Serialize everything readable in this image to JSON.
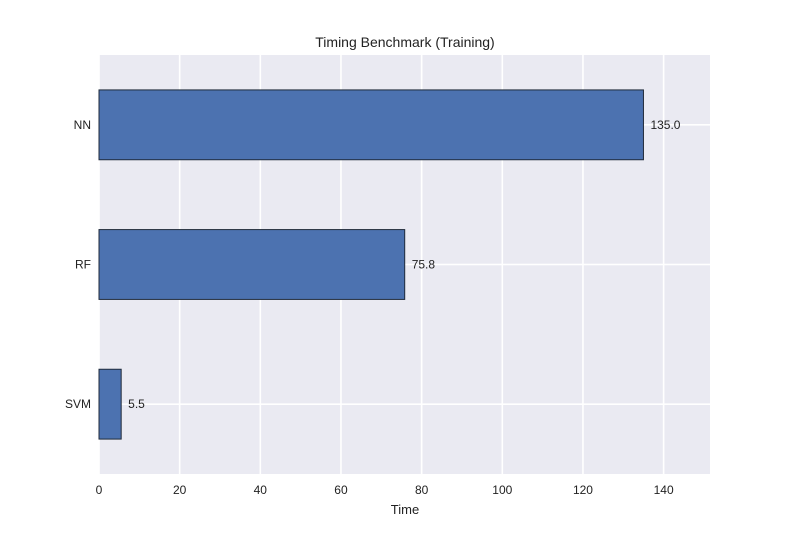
{
  "chart_data": {
    "type": "bar",
    "orientation": "horizontal",
    "title": "Timing Benchmark (Training)",
    "xlabel": "Time",
    "ylabel": "",
    "categories": [
      "SVM",
      "RF",
      "NN"
    ],
    "values": [
      5.5,
      75.8,
      135.0
    ],
    "data_labels": [
      "5.5",
      "75.8",
      "135.0"
    ],
    "xlim": [
      0,
      151.5
    ],
    "xticks": [
      0,
      20,
      40,
      60,
      80,
      100,
      120,
      140
    ],
    "grid": true,
    "legend": "none",
    "colors": {
      "bar": "#4c72b0",
      "bar_edge": "#1f2a3a",
      "plot_background": "#eaeaf2",
      "grid": "#ffffff"
    }
  }
}
